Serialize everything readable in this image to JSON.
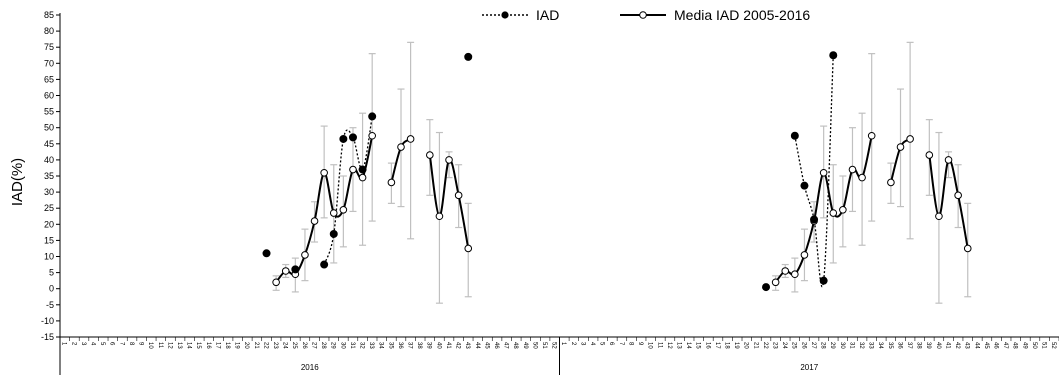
{
  "chart_data": {
    "type": "line",
    "ylabel": "IAD(%)",
    "ylim": [
      -15,
      85
    ],
    "ytick_step": 5,
    "grid": false,
    "legend_position": "top",
    "weeks": [
      "1",
      "2",
      "3",
      "4",
      "5",
      "6",
      "7",
      "8",
      "9",
      "10",
      "11",
      "12",
      "13",
      "14",
      "15",
      "16",
      "17",
      "18",
      "19",
      "20",
      "21",
      "22",
      "23",
      "24",
      "25",
      "26",
      "27",
      "28",
      "29",
      "30",
      "31",
      "32",
      "33",
      "34",
      "35",
      "36",
      "37",
      "38",
      "39",
      "40",
      "41",
      "42",
      "43",
      "44",
      "45",
      "46",
      "47",
      "48",
      "49",
      "50",
      "51",
      "52"
    ],
    "groups": [
      "2016",
      "2017"
    ],
    "series": [
      {
        "name": "IAD",
        "style": "dotted",
        "marker": "filled-circle",
        "color": "#000000",
        "data": {
          "2016": [
            [
              22,
              11
            ],
            [
              25,
              6
            ],
            [
              28,
              7.5
            ],
            [
              29,
              17
            ],
            [
              30,
              46.5
            ],
            [
              31,
              47
            ],
            [
              32,
              37
            ],
            [
              33,
              53.5
            ],
            [
              43,
              72
            ]
          ],
          "2017": [
            [
              22,
              0.5
            ],
            [
              25,
              47.5
            ],
            [
              26,
              32
            ],
            [
              27,
              21.5
            ],
            [
              28,
              2.5
            ],
            [
              29,
              72.5
            ]
          ]
        }
      },
      {
        "name": "Media IAD  2005-2016",
        "style": "solid",
        "marker": "open-circle",
        "color": "#000000",
        "segments": [
          [
            [
              23,
              2
            ],
            [
              24,
              5.5
            ],
            [
              25,
              4.5
            ],
            [
              26,
              10.5
            ],
            [
              27,
              21
            ],
            [
              28,
              36
            ],
            [
              29,
              23.5
            ],
            [
              30,
              24.5
            ],
            [
              31,
              37
            ],
            [
              32,
              34.5
            ],
            [
              33,
              47.5
            ]
          ],
          [
            [
              35,
              33
            ],
            [
              36,
              44
            ],
            [
              37,
              46.5
            ]
          ],
          [
            [
              39,
              41.5
            ],
            [
              40,
              22.5
            ],
            [
              41,
              40
            ],
            [
              42,
              29
            ],
            [
              43,
              12.5
            ]
          ]
        ]
      }
    ],
    "error_bars": [
      [
        23,
        -0.5,
        4
      ],
      [
        24,
        3.5,
        7.5
      ],
      [
        25,
        -1,
        9.5
      ],
      [
        26,
        2.5,
        18.5
      ],
      [
        27,
        14.5,
        27
      ],
      [
        28,
        22,
        50.5
      ],
      [
        29,
        8,
        38.5
      ],
      [
        30,
        13,
        35
      ],
      [
        31,
        24,
        50
      ],
      [
        32,
        13.5,
        54.5
      ],
      [
        33,
        21,
        73
      ],
      [
        35,
        26.5,
        39
      ],
      [
        36,
        25.5,
        62
      ],
      [
        37,
        15.5,
        76.5
      ],
      [
        39,
        29,
        52.5
      ],
      [
        40,
        -4.5,
        48.5
      ],
      [
        41,
        34.5,
        42.5
      ],
      [
        42,
        19,
        38.5
      ],
      [
        43,
        -2.5,
        26.5
      ]
    ],
    "error_bar_color": "#c0c0c0"
  }
}
